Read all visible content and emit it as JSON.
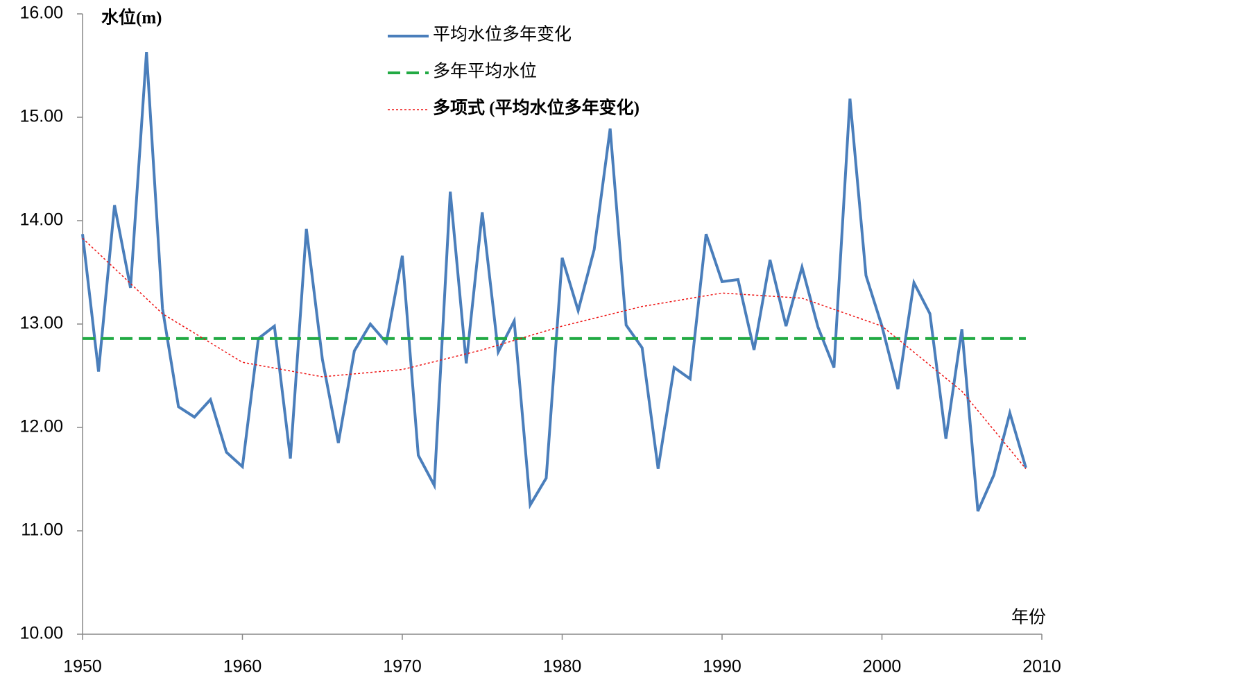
{
  "chart_data": {
    "type": "line",
    "y_label": "水位(m)",
    "x_label": "年份",
    "x": [
      1950,
      1951,
      1952,
      1953,
      1954,
      1955,
      1956,
      1957,
      1958,
      1959,
      1960,
      1961,
      1962,
      1963,
      1964,
      1965,
      1966,
      1967,
      1968,
      1969,
      1970,
      1971,
      1972,
      1973,
      1974,
      1975,
      1976,
      1977,
      1978,
      1979,
      1980,
      1981,
      1982,
      1983,
      1984,
      1985,
      1986,
      1987,
      1988,
      1989,
      1990,
      1991,
      1992,
      1993,
      1994,
      1995,
      1996,
      1997,
      1998,
      1999,
      2000,
      2001,
      2002,
      2003,
      2004,
      2005,
      2006,
      2007,
      2008,
      2009
    ],
    "series": [
      {
        "name": "平均水位多年变化",
        "color": "#4a7ebb",
        "values": [
          13.87,
          12.54,
          14.15,
          13.35,
          15.63,
          13.15,
          12.2,
          12.1,
          12.27,
          11.76,
          11.62,
          12.86,
          12.98,
          11.7,
          13.92,
          12.66,
          11.85,
          12.74,
          13.0,
          12.82,
          13.66,
          11.73,
          11.44,
          14.28,
          12.62,
          14.08,
          12.73,
          13.03,
          11.25,
          11.51,
          13.64,
          13.13,
          13.72,
          14.89,
          12.99,
          12.77,
          11.6,
          12.58,
          12.47,
          13.87,
          13.41,
          13.43,
          12.75,
          13.62,
          12.98,
          13.55,
          12.97,
          12.58,
          15.18,
          13.47,
          12.98,
          12.37,
          13.4,
          13.1,
          11.89,
          12.95,
          11.19,
          11.54,
          12.14,
          11.61
        ]
      },
      {
        "name": "多年平均水位",
        "color": "#22aa44",
        "x": [
          1950,
          2009
        ],
        "values": [
          12.86,
          12.86
        ]
      },
      {
        "name": "多项式 (平均水位多年变化)",
        "color": "#ee1111",
        "x": [
          1950,
          1955,
          1960,
          1965,
          1970,
          1975,
          1980,
          1985,
          1990,
          1995,
          2000,
          2005,
          2009
        ],
        "values": [
          13.83,
          13.1,
          12.63,
          12.49,
          12.56,
          12.75,
          12.98,
          13.17,
          13.3,
          13.25,
          12.98,
          12.35,
          11.6
        ]
      }
    ],
    "xlim": [
      1950,
      2010
    ],
    "xticks": [
      1950,
      1960,
      1970,
      1980,
      1990,
      2000,
      2010
    ],
    "ylim": [
      10,
      16
    ],
    "yticks": [
      {
        "value": 10,
        "label": "10.00"
      },
      {
        "value": 11,
        "label": "11.00"
      },
      {
        "value": 12,
        "label": "12.00"
      },
      {
        "value": 13,
        "label": "13.00"
      },
      {
        "value": 14,
        "label": "14.00"
      },
      {
        "value": 15,
        "label": "15.00"
      },
      {
        "value": 16,
        "label": "16.00"
      }
    ]
  }
}
